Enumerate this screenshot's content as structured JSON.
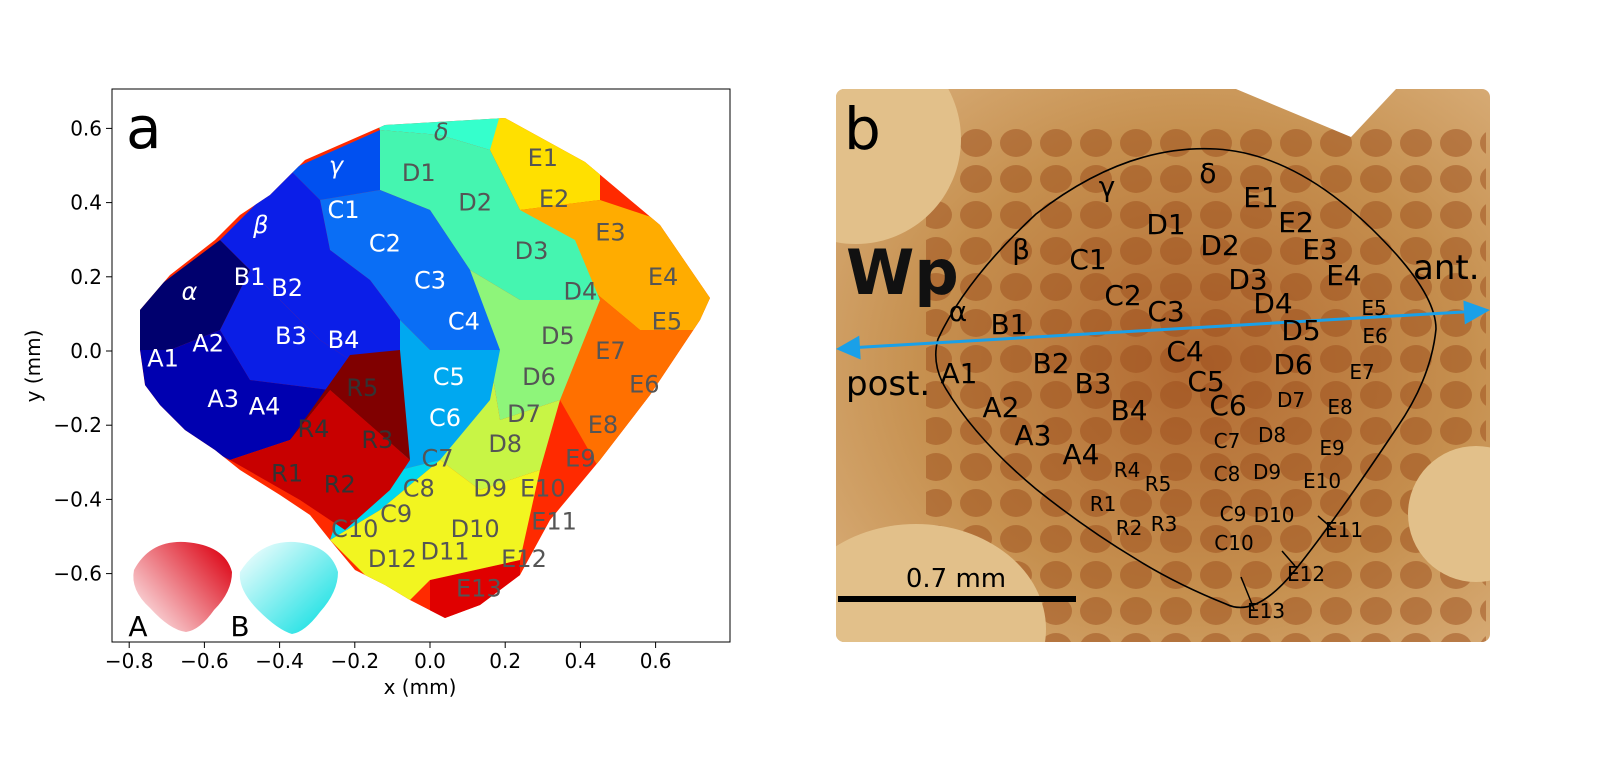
{
  "panel_a": {
    "letter": "a",
    "xlabel": "x (mm)",
    "ylabel": "y (mm)",
    "xticks": [
      "−0.8",
      "−0.6",
      "−0.4",
      "−0.2",
      "0.0",
      "0.2",
      "0.4",
      "0.6"
    ],
    "yticks": [
      "0.6",
      "0.4",
      "0.2",
      "0.0",
      "−0.2",
      "−0.4",
      "−0.6"
    ],
    "inset_labels": [
      "A",
      "B"
    ],
    "colors": {
      "alpha": "#00006e",
      "A": "#0000b0",
      "B": "#0a1ee6",
      "beta": "#0b1ee8",
      "gamma": "#0050f0",
      "C": "#0a6ef5",
      "C_low": "#00a8f0",
      "C_tail": "#00d8f0",
      "delta": "#35ffcc",
      "D_top": "#45f5b0",
      "D_mid": "#8ef57a",
      "D_low": "#c8f545",
      "D_tail": "#f2f520",
      "E_top": "#ffe000",
      "E_mid": "#ffac00",
      "E_low": "#ff7000",
      "E_tail": "#ff2800",
      "E13": "#e00000",
      "R_dark": "#800000",
      "R_light": "#c80000"
    },
    "cell_labels": [
      {
        "t": "δ",
        "x": 0.03,
        "y": 0.59,
        "c": "#555555",
        "italic": true
      },
      {
        "t": "γ",
        "x": -0.25,
        "y": 0.5,
        "c": "#ffffff",
        "italic": true
      },
      {
        "t": "β",
        "x": -0.45,
        "y": 0.34,
        "c": "#ffffff",
        "italic": true
      },
      {
        "t": "α",
        "x": -0.64,
        "y": 0.16,
        "c": "#ffffff",
        "italic": true
      },
      {
        "t": "D1",
        "x": -0.03,
        "y": 0.48,
        "c": "#555555"
      },
      {
        "t": "D2",
        "x": 0.12,
        "y": 0.4,
        "c": "#555555"
      },
      {
        "t": "D3",
        "x": 0.27,
        "y": 0.27,
        "c": "#555555"
      },
      {
        "t": "D4",
        "x": 0.4,
        "y": 0.16,
        "c": "#555555"
      },
      {
        "t": "D5",
        "x": 0.34,
        "y": 0.04,
        "c": "#555555"
      },
      {
        "t": "D6",
        "x": 0.29,
        "y": -0.07,
        "c": "#555555"
      },
      {
        "t": "D7",
        "x": 0.25,
        "y": -0.17,
        "c": "#555555"
      },
      {
        "t": "D8",
        "x": 0.2,
        "y": -0.25,
        "c": "#555555"
      },
      {
        "t": "D9",
        "x": 0.16,
        "y": -0.37,
        "c": "#555555"
      },
      {
        "t": "D10",
        "x": 0.12,
        "y": -0.48,
        "c": "#555555"
      },
      {
        "t": "D11",
        "x": 0.04,
        "y": -0.54,
        "c": "#555555"
      },
      {
        "t": "D12",
        "x": -0.1,
        "y": -0.56,
        "c": "#555555"
      },
      {
        "t": "E1",
        "x": 0.3,
        "y": 0.52,
        "c": "#555555"
      },
      {
        "t": "E2",
        "x": 0.33,
        "y": 0.41,
        "c": "#555555"
      },
      {
        "t": "E3",
        "x": 0.48,
        "y": 0.32,
        "c": "#555555"
      },
      {
        "t": "E4",
        "x": 0.62,
        "y": 0.2,
        "c": "#555555"
      },
      {
        "t": "E5",
        "x": 0.63,
        "y": 0.08,
        "c": "#555555"
      },
      {
        "t": "E6",
        "x": 0.57,
        "y": -0.09,
        "c": "#555555"
      },
      {
        "t": "E7",
        "x": 0.48,
        "y": 0.0,
        "c": "#555555"
      },
      {
        "t": "E8",
        "x": 0.46,
        "y": -0.2,
        "c": "#555555"
      },
      {
        "t": "E9",
        "x": 0.4,
        "y": -0.29,
        "c": "#555555"
      },
      {
        "t": "E10",
        "x": 0.3,
        "y": -0.37,
        "c": "#555555"
      },
      {
        "t": "E11",
        "x": 0.33,
        "y": -0.46,
        "c": "#555555"
      },
      {
        "t": "E12",
        "x": 0.25,
        "y": -0.56,
        "c": "#555555"
      },
      {
        "t": "E13",
        "x": 0.13,
        "y": -0.64,
        "c": "#555555"
      },
      {
        "t": "C1",
        "x": -0.23,
        "y": 0.38,
        "c": "#ffffff"
      },
      {
        "t": "C2",
        "x": -0.12,
        "y": 0.29,
        "c": "#ffffff"
      },
      {
        "t": "C3",
        "x": 0.0,
        "y": 0.19,
        "c": "#ffffff"
      },
      {
        "t": "C4",
        "x": 0.09,
        "y": 0.08,
        "c": "#ffffff"
      },
      {
        "t": "C5",
        "x": 0.05,
        "y": -0.07,
        "c": "#ffffff"
      },
      {
        "t": "C6",
        "x": 0.04,
        "y": -0.18,
        "c": "#ffffff"
      },
      {
        "t": "C7",
        "x": 0.02,
        "y": -0.29,
        "c": "#555555"
      },
      {
        "t": "C8",
        "x": -0.03,
        "y": -0.37,
        "c": "#555555"
      },
      {
        "t": "C9",
        "x": -0.09,
        "y": -0.44,
        "c": "#555555"
      },
      {
        "t": "C10",
        "x": -0.2,
        "y": -0.48,
        "c": "#555555"
      },
      {
        "t": "B1",
        "x": -0.48,
        "y": 0.2,
        "c": "#ffffff"
      },
      {
        "t": "B2",
        "x": -0.38,
        "y": 0.17,
        "c": "#ffffff"
      },
      {
        "t": "B3",
        "x": -0.37,
        "y": 0.04,
        "c": "#ffffff"
      },
      {
        "t": "B4",
        "x": -0.23,
        "y": 0.03,
        "c": "#ffffff"
      },
      {
        "t": "A1",
        "x": -0.71,
        "y": -0.02,
        "c": "#ffffff"
      },
      {
        "t": "A2",
        "x": -0.59,
        "y": 0.02,
        "c": "#ffffff"
      },
      {
        "t": "A3",
        "x": -0.55,
        "y": -0.13,
        "c": "#ffffff"
      },
      {
        "t": "A4",
        "x": -0.44,
        "y": -0.15,
        "c": "#ffffff"
      },
      {
        "t": "R5",
        "x": -0.18,
        "y": -0.1,
        "c": "#333333"
      },
      {
        "t": "R4",
        "x": -0.31,
        "y": -0.21,
        "c": "#333333"
      },
      {
        "t": "R3",
        "x": -0.14,
        "y": -0.24,
        "c": "#333333"
      },
      {
        "t": "R1",
        "x": -0.38,
        "y": -0.33,
        "c": "#333333"
      },
      {
        "t": "R2",
        "x": -0.24,
        "y": -0.36,
        "c": "#333333"
      }
    ]
  },
  "panel_b": {
    "letter": "b",
    "wp_label": "Wp",
    "ant_label": "ant.",
    "post_label": "post.",
    "scale_label": "0.7 mm",
    "colors": {
      "bg": "#c98f52",
      "accent": "#1aa0e8",
      "corner": "#e2c08a"
    },
    "labels": [
      {
        "t": "δ",
        "x": 372,
        "y": 94,
        "s": 28
      },
      {
        "t": "γ",
        "x": 271,
        "y": 107,
        "s": 28
      },
      {
        "t": "E1",
        "x": 425,
        "y": 118,
        "s": 28
      },
      {
        "t": "D1",
        "x": 330,
        "y": 145,
        "s": 28
      },
      {
        "t": "E2",
        "x": 460,
        "y": 143,
        "s": 28
      },
      {
        "t": "D2",
        "x": 384,
        "y": 166,
        "s": 28
      },
      {
        "t": "β",
        "x": 185,
        "y": 170,
        "s": 28
      },
      {
        "t": "E3",
        "x": 484,
        "y": 170,
        "s": 28
      },
      {
        "t": "C1",
        "x": 252,
        "y": 180,
        "s": 28
      },
      {
        "t": "D3",
        "x": 412,
        "y": 200,
        "s": 28
      },
      {
        "t": "E4",
        "x": 508,
        "y": 196,
        "s": 28
      },
      {
        "t": "C2",
        "x": 287,
        "y": 216,
        "s": 28
      },
      {
        "t": "D4",
        "x": 437,
        "y": 224,
        "s": 28
      },
      {
        "t": "E5",
        "x": 538,
        "y": 226,
        "s": 20
      },
      {
        "t": "α",
        "x": 122,
        "y": 232,
        "s": 28
      },
      {
        "t": "C3",
        "x": 330,
        "y": 232,
        "s": 28
      },
      {
        "t": "B1",
        "x": 173,
        "y": 245,
        "s": 28
      },
      {
        "t": "D5",
        "x": 465,
        "y": 251,
        "s": 28
      },
      {
        "t": "E6",
        "x": 539,
        "y": 254,
        "s": 20
      },
      {
        "t": "C4",
        "x": 349,
        "y": 272,
        "s": 28
      },
      {
        "t": "B2",
        "x": 215,
        "y": 284,
        "s": 28
      },
      {
        "t": "D6",
        "x": 457,
        "y": 285,
        "s": 28
      },
      {
        "t": "A1",
        "x": 123,
        "y": 294,
        "s": 28
      },
      {
        "t": "E7",
        "x": 526,
        "y": 290,
        "s": 20
      },
      {
        "t": "B3",
        "x": 257,
        "y": 304,
        "s": 28
      },
      {
        "t": "C5",
        "x": 370,
        "y": 302,
        "s": 28
      },
      {
        "t": "D7",
        "x": 455,
        "y": 318,
        "s": 20
      },
      {
        "t": "E8",
        "x": 504,
        "y": 325,
        "s": 20
      },
      {
        "t": "A2",
        "x": 165,
        "y": 328,
        "s": 28
      },
      {
        "t": "C6",
        "x": 392,
        "y": 326,
        "s": 28
      },
      {
        "t": "B4",
        "x": 293,
        "y": 331,
        "s": 28
      },
      {
        "t": "A3",
        "x": 197,
        "y": 356,
        "s": 28
      },
      {
        "t": "D8",
        "x": 436,
        "y": 353,
        "s": 20
      },
      {
        "t": "C7",
        "x": 391,
        "y": 359,
        "s": 20
      },
      {
        "t": "E9",
        "x": 496,
        "y": 366,
        "s": 20
      },
      {
        "t": "A4",
        "x": 245,
        "y": 375,
        "s": 28
      },
      {
        "t": "R4",
        "x": 291,
        "y": 388,
        "s": 20
      },
      {
        "t": "D9",
        "x": 431,
        "y": 390,
        "s": 20
      },
      {
        "t": "C8",
        "x": 391,
        "y": 392,
        "s": 20
      },
      {
        "t": "R5",
        "x": 322,
        "y": 402,
        "s": 20
      },
      {
        "t": "E10",
        "x": 486,
        "y": 399,
        "s": 20
      },
      {
        "t": "R1",
        "x": 267,
        "y": 422,
        "s": 20
      },
      {
        "t": "C9",
        "x": 397,
        "y": 432,
        "s": 20
      },
      {
        "t": "D10",
        "x": 438,
        "y": 433,
        "s": 20
      },
      {
        "t": "R3",
        "x": 328,
        "y": 442,
        "s": 20
      },
      {
        "t": "R2",
        "x": 293,
        "y": 446,
        "s": 20
      },
      {
        "t": "E11",
        "x": 508,
        "y": 448,
        "s": 20
      },
      {
        "t": "C10",
        "x": 398,
        "y": 461,
        "s": 20
      },
      {
        "t": "E12",
        "x": 470,
        "y": 492,
        "s": 20
      },
      {
        "t": "E13",
        "x": 430,
        "y": 529,
        "s": 20
      }
    ]
  }
}
